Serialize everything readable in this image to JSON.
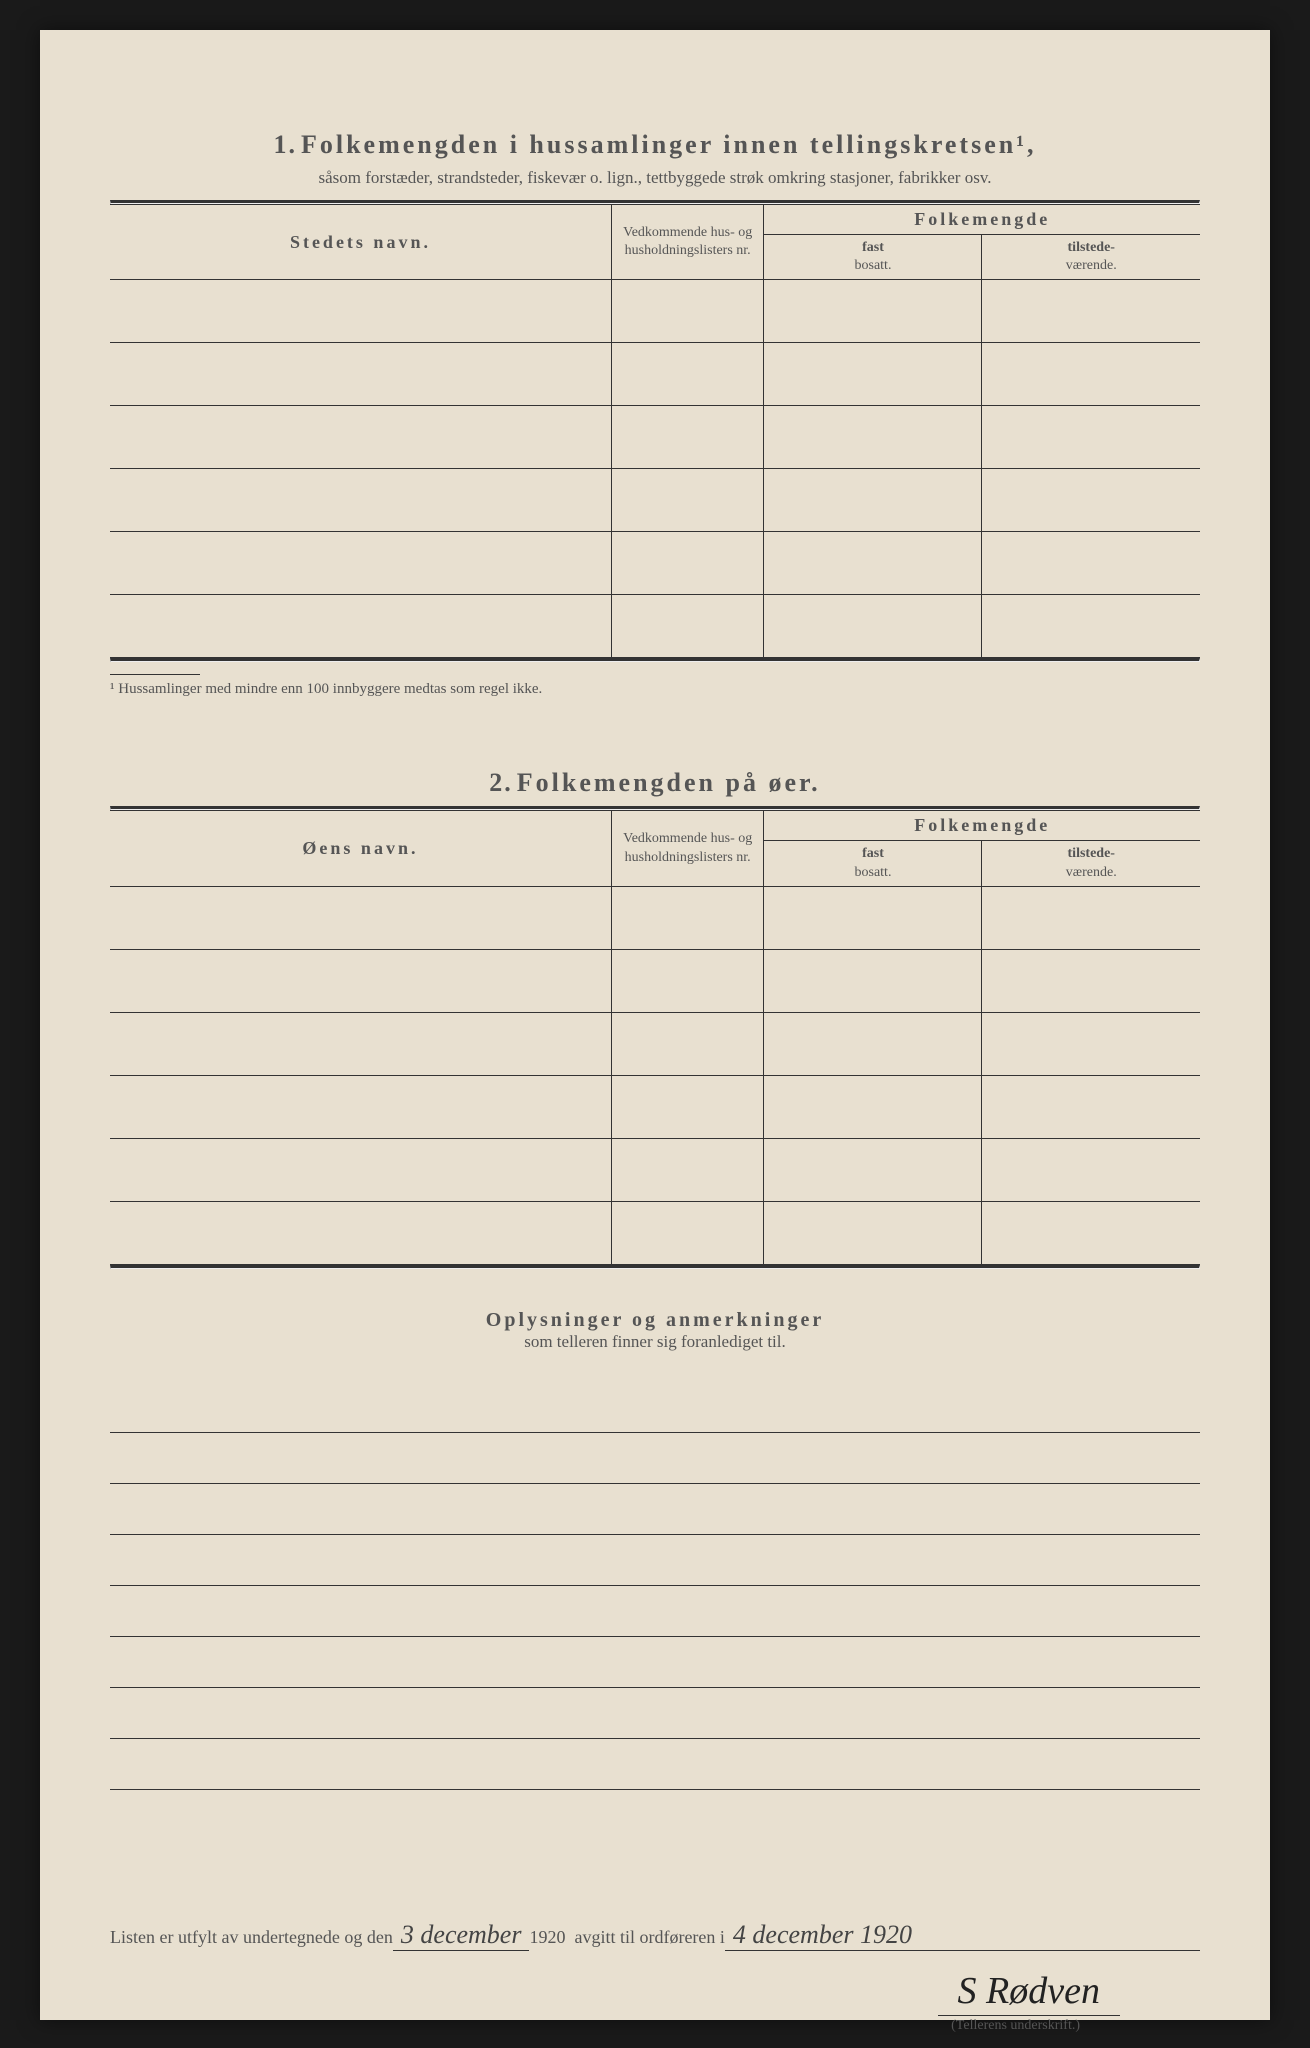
{
  "section1": {
    "number": "1.",
    "title": "Folkemengden i hussamlinger innen tellingskretsen¹,",
    "subtitle": "såsom forstæder, strandsteder, fiskevær o. lign., tettbyggede strøk omkring stasjoner, fabrikker osv.",
    "col_name": "Stedets navn.",
    "col_nr": "Vedkommende hus- og husholdningslisters nr.",
    "col_group": "Folkemengde",
    "col_fast": "fast",
    "col_fast_sub": "bosatt.",
    "col_til": "tilstede-",
    "col_til_sub": "værende.",
    "footnote": "¹ Hussamlinger med mindre enn 100 innbyggere medtas som regel ikke.",
    "rows": 6
  },
  "section2": {
    "number": "2.",
    "title": "Folkemengden på øer.",
    "col_name": "Øens navn.",
    "col_nr": "Vedkommende hus- og husholdningslisters nr.",
    "col_group": "Folkemengde",
    "col_fast": "fast",
    "col_fast_sub": "bosatt.",
    "col_til": "tilstede-",
    "col_til_sub": "værende.",
    "rows": 6
  },
  "oplys": {
    "title": "Oplysninger og anmerkninger",
    "subtitle": "som telleren finner sig foranlediget til.",
    "lines": 8
  },
  "footer": {
    "text1": "Listen er utfylt av undertegnede og den",
    "fill1": "3 december",
    "year": "1920",
    "text2": "avgitt til ordføreren i",
    "fill2": "4 december 1920",
    "signature": "S Rødven",
    "sig_label": "(Tellerens underskrift.)"
  },
  "style": {
    "page_bg": "#e8e0d0",
    "text_color": "#555",
    "line_color": "#333"
  }
}
